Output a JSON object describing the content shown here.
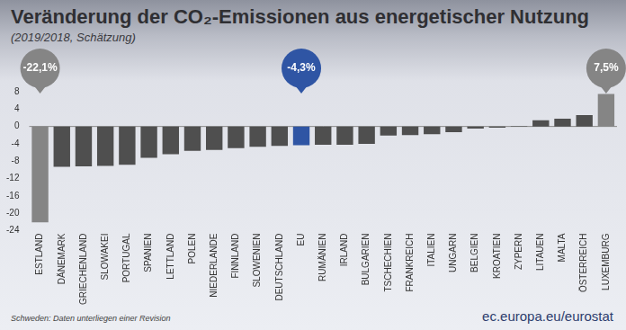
{
  "chart_data": {
    "type": "bar",
    "title": "Veränderung der CO₂-Emissionen aus energetischer Nutzung",
    "subtitle": "(2019/2018, Schätzung)",
    "footnote": "Schweden: Daten unterliegen einer Revision",
    "source": "ec.europa.eu/eurostat",
    "categories": [
      "ESTLAND",
      "DÄNEMARK",
      "GRIECHENLAND",
      "SLOWAKEI",
      "PORTUGAL",
      "SPANIEN",
      "LETTLAND",
      "POLEN",
      "NIEDERLANDE",
      "FINNLAND",
      "SLOWENIEN",
      "DEUTSCHLAND",
      "EU",
      "RUMÄNIEN",
      "IRLAND",
      "BULGARIEN",
      "TSCHECHIEN",
      "FRANKREICH",
      "ITALIEN",
      "UNGARN",
      "BELGIEN",
      "KROATIEN",
      "ZYPERN",
      "LITAUEN",
      "MALTA",
      "ÖSTERREICH",
      "LUXEMBURG"
    ],
    "values": [
      -22.1,
      -9.3,
      -9.2,
      -9.1,
      -8.8,
      -7.2,
      -6.4,
      -5.6,
      -5.4,
      -5.0,
      -4.7,
      -4.5,
      -4.3,
      -4.2,
      -4.2,
      -4.0,
      -2.1,
      -2.0,
      -1.8,
      -1.3,
      -0.5,
      -0.3,
      0.1,
      1.4,
      1.8,
      2.6,
      7.5
    ],
    "value_labels": [
      "-22,1%",
      null,
      null,
      null,
      null,
      null,
      null,
      null,
      null,
      null,
      null,
      null,
      "-4,3%",
      null,
      null,
      null,
      null,
      null,
      null,
      null,
      null,
      null,
      null,
      null,
      null,
      null,
      "7,5%"
    ],
    "data_labels": true,
    "colors": [
      "#858585",
      "#4f4f4f",
      "#4f4f4f",
      "#4f4f4f",
      "#4f4f4f",
      "#4f4f4f",
      "#4f4f4f",
      "#4f4f4f",
      "#4f4f4f",
      "#4f4f4f",
      "#4f4f4f",
      "#4f4f4f",
      "#2f55a4",
      "#4f4f4f",
      "#4f4f4f",
      "#4f4f4f",
      "#4f4f4f",
      "#4f4f4f",
      "#4f4f4f",
      "#4f4f4f",
      "#4f4f4f",
      "#4f4f4f",
      "#4f4f4f",
      "#4f4f4f",
      "#4f4f4f",
      "#4f4f4f",
      "#858585"
    ],
    "ylim": [
      -24,
      8
    ],
    "yticks": [
      -24,
      -20,
      -16,
      -12,
      -8,
      -4,
      0,
      4,
      8
    ],
    "grid": false
  }
}
